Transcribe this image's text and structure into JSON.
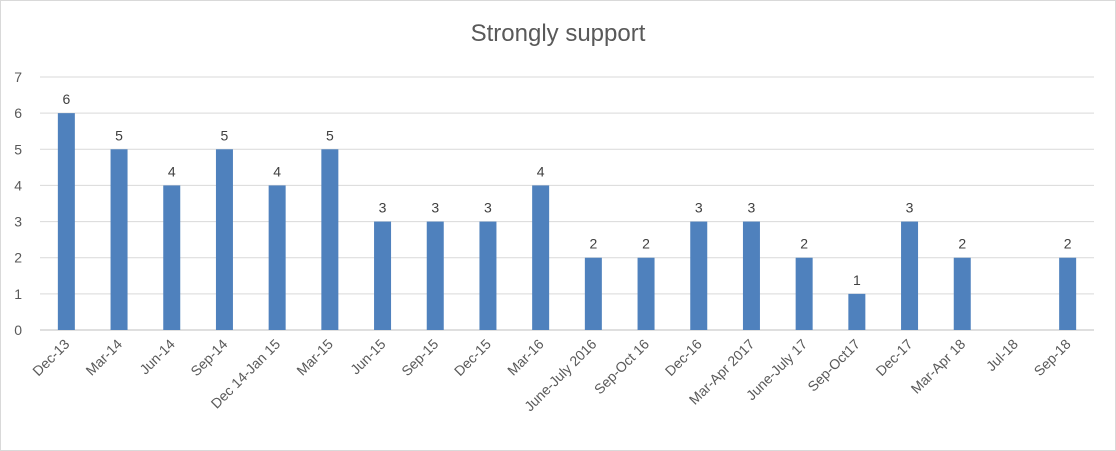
{
  "chart_data": {
    "type": "bar",
    "title": "Strongly support",
    "xlabel": "",
    "ylabel": "",
    "ylim": [
      0,
      7
    ],
    "yticks": [
      0,
      1,
      2,
      3,
      4,
      5,
      6,
      7
    ],
    "grid": true,
    "legend": "none",
    "bar_color": "#4f81bd",
    "categories": [
      "Dec-13",
      "Mar-14",
      "Jun-14",
      "Sep-14",
      "Dec 14-Jan 15",
      "Mar-15",
      "Jun-15",
      "Sep-15",
      "Dec-15",
      "Mar-16",
      "June-July 2016",
      "Sep-Oct 16",
      "Dec-16",
      "Mar-Apr 2017",
      "June-July 17",
      "Sep-Oct17",
      "Dec-17",
      "Mar-Apr 18",
      "Jul-18",
      "Sep-18"
    ],
    "values": [
      6,
      5,
      4,
      5,
      4,
      5,
      3,
      3,
      3,
      4,
      2,
      2,
      3,
      3,
      2,
      1,
      3,
      2,
      null,
      2
    ]
  }
}
